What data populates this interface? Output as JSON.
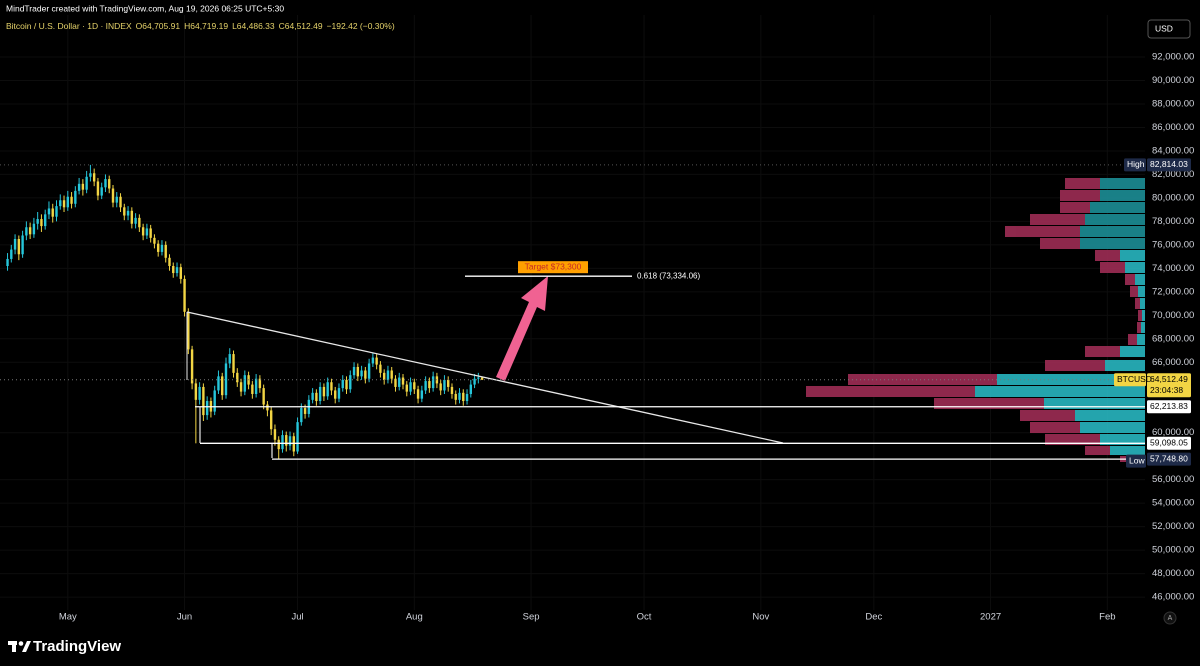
{
  "header": {
    "watermark": "MindTrader created with TradingView.com, Aug 19, 2026 06:25 UTC+5:30",
    "symbol": "Bitcoin / U.S. Dollar · 1D · INDEX",
    "ohlc": [
      {
        "label": "O",
        "value": "64,705.91"
      },
      {
        "label": "H",
        "value": "64,719.19"
      },
      {
        "label": "L",
        "value": "64,486.33"
      },
      {
        "label": "C",
        "value": "64,512.49"
      }
    ],
    "change": "−192.42 (−0.30%)",
    "currency": "USD",
    "autoscale": "A"
  },
  "chart_data": {
    "type": "candlestick",
    "up_color": "#26c6da",
    "down_color": "#f2d544",
    "grid": true,
    "xlim": [
      -2,
      302
    ],
    "xticks": [
      {
        "value": 16,
        "label": "May"
      },
      {
        "value": 47,
        "label": "Jun"
      },
      {
        "value": 77,
        "label": "Jul"
      },
      {
        "value": 108,
        "label": "Aug"
      },
      {
        "value": 139,
        "label": "Sep"
      },
      {
        "value": 169,
        "label": "Oct"
      },
      {
        "value": 200,
        "label": "Nov"
      },
      {
        "value": 230,
        "label": "Dec"
      },
      {
        "value": 261,
        "label": "2027"
      },
      {
        "value": 292,
        "label": "Feb"
      }
    ],
    "ylim": [
      44900,
      95580
    ],
    "yticks": [
      {
        "value": 46000,
        "label": "46,000.00"
      },
      {
        "value": 48000,
        "label": "48,000.00"
      },
      {
        "value": 50000,
        "label": "50,000.00"
      },
      {
        "value": 52000,
        "label": "52,000.00"
      },
      {
        "value": 54000,
        "label": "54,000.00"
      },
      {
        "value": 56000,
        "label": "56,000.00"
      },
      {
        "value": 60000,
        "label": "60,000.00"
      },
      {
        "value": 66000,
        "label": "66,000.00"
      },
      {
        "value": 68000,
        "label": "68,000.00"
      },
      {
        "value": 70000,
        "label": "70,000.00"
      },
      {
        "value": 72000,
        "label": "72,000.00"
      },
      {
        "value": 74000,
        "label": "74,000.00"
      },
      {
        "value": 76000,
        "label": "76,000.00"
      },
      {
        "value": 78000,
        "label": "78,000.00"
      },
      {
        "value": 80000,
        "label": "80,000.00"
      },
      {
        "value": 82000,
        "label": "82,000.00"
      },
      {
        "value": 84000,
        "label": "84,000.00"
      },
      {
        "value": 86000,
        "label": "86,000.00"
      },
      {
        "value": 88000,
        "label": "88,000.00"
      },
      {
        "value": 90000,
        "label": "90,000.00"
      },
      {
        "value": 92000,
        "label": "92,000.00"
      }
    ],
    "open": [
      74200,
      74800,
      75600,
      76500,
      75200,
      76800,
      77500,
      76900,
      77800,
      78200,
      77600,
      78600,
      79100,
      78400,
      79300,
      79800,
      79200,
      80100,
      79500,
      80600,
      81200,
      80700,
      81800,
      82100,
      81400,
      80200,
      80900,
      81600,
      80800,
      79600,
      80100,
      79200,
      78500,
      78900,
      77800,
      78300,
      77500,
      76800,
      77400,
      76600,
      76100,
      75400,
      76000,
      74900,
      74200,
      73600,
      74100,
      73100,
      70300,
      67100,
      64200,
      62800,
      63900,
      61500,
      62700,
      61800,
      63600,
      64800,
      63200,
      65900,
      66700,
      65100,
      64300,
      63500,
      64900,
      64100,
      63300,
      64600,
      63800,
      62400,
      61900,
      60300,
      59400,
      58600,
      59800,
      58900,
      59700,
      58400,
      60900,
      62100,
      61600,
      62800,
      63400,
      62700,
      63900,
      63100,
      64300,
      63600,
      62900,
      63800,
      64500,
      63700,
      64900,
      65600,
      64800,
      65300,
      64600,
      65900,
      66400,
      65800,
      65100,
      64500,
      65300,
      64600,
      63900,
      64700,
      64100,
      63500,
      64300,
      63700,
      62900,
      63600,
      64400,
      63800,
      64800,
      64200,
      63600,
      64500,
      63900,
      63300,
      62800,
      63400,
      62700,
      63300,
      64100,
      64600,
      64705.91
    ],
    "high": [
      75300,
      76000,
      76900,
      76800,
      77200,
      78000,
      77900,
      78300,
      78800,
      78600,
      79000,
      79700,
      79500,
      79800,
      80300,
      80200,
      80600,
      80500,
      81000,
      81700,
      81600,
      82300,
      82814.03,
      82500,
      81700,
      81300,
      82000,
      81900,
      81100,
      80500,
      80400,
      79500,
      79300,
      79200,
      78700,
      78600,
      77800,
      77800,
      77700,
      76900,
      76400,
      76400,
      76300,
      75200,
      74500,
      74500,
      74400,
      73400,
      70600,
      67400,
      64600,
      64300,
      64200,
      63100,
      63000,
      64000,
      65300,
      65100,
      66400,
      67200,
      67000,
      65500,
      64600,
      65300,
      65200,
      64400,
      65000,
      64900,
      64100,
      62700,
      62200,
      60700,
      59700,
      60200,
      60100,
      60100,
      60000,
      61300,
      62500,
      62400,
      63200,
      63800,
      63700,
      64300,
      64200,
      64700,
      64600,
      63900,
      64200,
      64900,
      64800,
      65300,
      66000,
      65900,
      65700,
      65600,
      66300,
      66800,
      66700,
      66100,
      65400,
      65700,
      65600,
      64900,
      65100,
      65000,
      64400,
      64700,
      64600,
      64000,
      64000,
      64800,
      64700,
      65200,
      65100,
      64500,
      64900,
      64800,
      64200,
      63600,
      63800,
      63700,
      63700,
      64500,
      65000,
      65100,
      64719.19
    ],
    "low": [
      73800,
      74500,
      75200,
      74700,
      74900,
      76400,
      76500,
      76600,
      77300,
      77100,
      77300,
      78200,
      77900,
      78000,
      79000,
      78800,
      78900,
      79100,
      79200,
      80300,
      80200,
      80400,
      81400,
      81000,
      79800,
      79900,
      80500,
      80400,
      79200,
      79200,
      78800,
      78100,
      78100,
      77400,
      77400,
      77100,
      76400,
      76500,
      76200,
      75700,
      75000,
      75100,
      74500,
      73800,
      73200,
      73300,
      72700,
      69900,
      66700,
      63700,
      59098.05,
      62400,
      61000,
      61100,
      61300,
      61500,
      63300,
      62800,
      62900,
      65500,
      64700,
      63900,
      63100,
      63200,
      63700,
      62900,
      63000,
      63400,
      62000,
      61400,
      59800,
      58900,
      57748.8,
      58300,
      58400,
      58500,
      58000,
      58200,
      60600,
      61200,
      61300,
      62500,
      62300,
      62400,
      62700,
      62800,
      63200,
      62500,
      62600,
      63500,
      63300,
      63400,
      64600,
      64400,
      64500,
      64200,
      64300,
      65600,
      65400,
      64700,
      64100,
      64200,
      64200,
      63500,
      63600,
      63700,
      63100,
      63200,
      63300,
      62500,
      62600,
      63300,
      63400,
      63500,
      63800,
      63200,
      63300,
      63500,
      62900,
      62400,
      62500,
      62300,
      62400,
      63000,
      63800,
      64200,
      64486.33
    ],
    "close": [
      74800,
      75600,
      76500,
      75200,
      76800,
      77500,
      76900,
      77800,
      78200,
      77600,
      78600,
      79100,
      78400,
      79300,
      79800,
      79200,
      80100,
      79500,
      80600,
      81200,
      80700,
      81800,
      82100,
      81400,
      80200,
      80900,
      81600,
      80800,
      79600,
      80100,
      79200,
      78500,
      78900,
      77800,
      78300,
      77500,
      76800,
      77400,
      76600,
      76100,
      75400,
      76000,
      74900,
      74200,
      73600,
      74100,
      73100,
      70300,
      67100,
      64200,
      62800,
      63900,
      61500,
      62700,
      61800,
      63600,
      64800,
      63200,
      65900,
      66700,
      65100,
      64300,
      63500,
      64900,
      64100,
      63300,
      64600,
      63800,
      62400,
      61900,
      60300,
      59400,
      58600,
      59800,
      58900,
      59700,
      58400,
      60900,
      62100,
      61600,
      62800,
      63400,
      62700,
      63900,
      63100,
      64300,
      63600,
      62900,
      63800,
      64500,
      63700,
      64900,
      65600,
      64800,
      65300,
      64600,
      65900,
      66400,
      65800,
      65100,
      64500,
      65300,
      64600,
      63900,
      64700,
      64100,
      63500,
      64300,
      63700,
      62900,
      63600,
      64400,
      63800,
      64800,
      64200,
      63600,
      64500,
      63900,
      63300,
      62800,
      63400,
      62700,
      63300,
      64100,
      64600,
      64704.91,
      64512.49
    ],
    "high_marker": {
      "tag": "High",
      "value": 82814.03,
      "label": "82,814.03"
    },
    "low_marker": {
      "tag": "Low",
      "value": 57748.8,
      "label": "57,748.80"
    },
    "last_price": {
      "tag": "BTCUSD",
      "value": 64512.49,
      "label": "64,512.49",
      "countdown": "23:04:38"
    },
    "levels": [
      {
        "value": 62213.83,
        "label": "62,213.83"
      },
      {
        "value": 59098.05,
        "label": "59,098.05"
      }
    ],
    "fib_level": {
      "value": 73334.06,
      "label": "0.618 (73,334.06)"
    },
    "target": {
      "label": "Target $73,300"
    }
  },
  "footer": {
    "brand": "TradingView"
  }
}
